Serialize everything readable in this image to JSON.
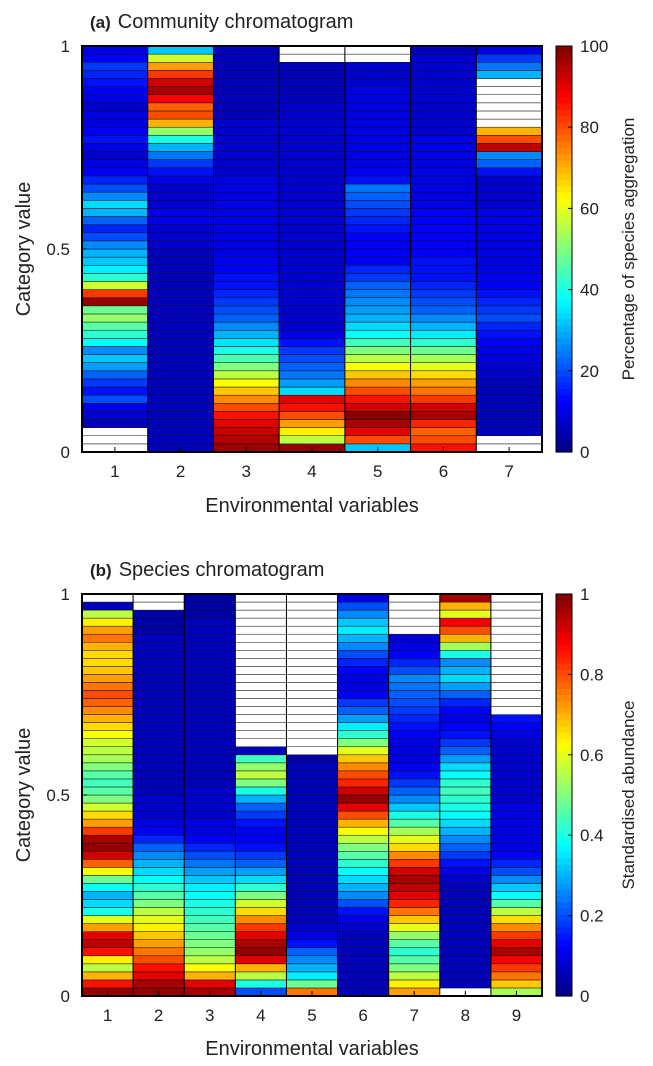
{
  "chart_data": [
    {
      "type": "heatmap",
      "panel_label": "(a)",
      "title": "Community chromatogram",
      "xlabel": "Environmental variables",
      "ylabel": "Category value",
      "colorbar_label": "Percentage of species aggregation",
      "x": [
        1,
        2,
        3,
        4,
        5,
        6,
        7
      ],
      "ylim": [
        0,
        1
      ],
      "clim": [
        0,
        100
      ],
      "yticks": [
        "0",
        "0.5",
        "1"
      ],
      "cticks": [
        "0",
        "20",
        "40",
        "60",
        "80",
        "100"
      ],
      "colormap": "jet",
      "missing_color": "#ffffff",
      "rows_bottom_to_top": 50,
      "columns": [
        [
          null,
          null,
          null,
          6,
          8,
          10,
          20,
          14,
          18,
          22,
          28,
          32,
          26,
          38,
          42,
          46,
          52,
          48,
          98,
          82,
          58,
          42,
          36,
          32,
          30,
          26,
          20,
          16,
          22,
          30,
          34,
          26,
          20,
          16,
          12,
          10,
          8,
          10,
          14,
          12,
          10,
          10,
          8,
          10,
          12,
          14,
          16,
          18,
          12,
          10
        ],
        [
          6,
          6,
          6,
          6,
          6,
          6,
          6,
          6,
          6,
          6,
          6,
          6,
          6,
          6,
          6,
          6,
          6,
          6,
          6,
          6,
          6,
          6,
          6,
          6,
          6,
          8,
          8,
          8,
          10,
          10,
          8,
          8,
          8,
          10,
          14,
          18,
          24,
          30,
          40,
          52,
          70,
          80,
          78,
          88,
          96,
          92,
          82,
          72,
          58,
          32
        ],
        [
          97,
          95,
          93,
          90,
          86,
          80,
          74,
          68,
          62,
          56,
          50,
          45,
          40,
          35,
          30,
          26,
          22,
          20,
          18,
          16,
          14,
          14,
          12,
          12,
          10,
          10,
          10,
          10,
          10,
          10,
          10,
          10,
          10,
          10,
          8,
          8,
          8,
          8,
          8,
          8,
          8,
          6,
          6,
          6,
          6,
          6,
          6,
          6,
          6,
          6
        ],
        [
          98,
          56,
          64,
          72,
          80,
          86,
          90,
          34,
          28,
          24,
          22,
          20,
          18,
          14,
          10,
          8,
          8,
          8,
          8,
          8,
          8,
          8,
          8,
          8,
          8,
          8,
          8,
          8,
          8,
          8,
          8,
          8,
          8,
          8,
          8,
          8,
          8,
          8,
          8,
          8,
          8,
          8,
          8,
          6,
          6,
          6,
          6,
          6,
          null,
          null
        ],
        [
          32,
          80,
          90,
          96,
          99,
          92,
          86,
          80,
          74,
          68,
          62,
          56,
          50,
          44,
          38,
          34,
          30,
          28,
          26,
          24,
          22,
          18,
          16,
          12,
          12,
          12,
          12,
          14,
          16,
          18,
          20,
          22,
          24,
          14,
          12,
          10,
          10,
          10,
          10,
          10,
          10,
          10,
          10,
          10,
          10,
          8,
          8,
          8,
          null,
          null
        ],
        [
          86,
          80,
          78,
          84,
          96,
          92,
          82,
          76,
          72,
          66,
          60,
          54,
          48,
          42,
          36,
          30,
          26,
          22,
          20,
          18,
          16,
          14,
          14,
          14,
          12,
          12,
          12,
          12,
          12,
          12,
          10,
          10,
          10,
          10,
          10,
          10,
          10,
          10,
          10,
          8,
          8,
          8,
          8,
          8,
          8,
          8,
          8,
          8,
          8,
          6
        ],
        [
          null,
          null,
          6,
          6,
          6,
          6,
          6,
          6,
          6,
          8,
          8,
          10,
          10,
          12,
          14,
          16,
          20,
          18,
          16,
          14,
          12,
          12,
          10,
          10,
          10,
          10,
          10,
          10,
          10,
          10,
          8,
          8,
          8,
          8,
          14,
          22,
          26,
          94,
          80,
          70,
          null,
          null,
          null,
          null,
          null,
          null,
          30,
          24,
          18,
          10
        ]
      ]
    },
    {
      "type": "heatmap",
      "panel_label": "(b)",
      "title": "Species chromatogram",
      "xlabel": "Environmental variables",
      "ylabel": "Category value",
      "colorbar_label": "Standardised abundance",
      "x": [
        1,
        2,
        3,
        4,
        5,
        6,
        7,
        8,
        9
      ],
      "ylim": [
        0,
        1
      ],
      "clim": [
        0,
        1
      ],
      "yticks": [
        "0",
        "0.5",
        "1"
      ],
      "cticks": [
        "0",
        "0.2",
        "0.4",
        "0.6",
        "0.8",
        "1"
      ],
      "colormap": "jet",
      "missing_color": "#ffffff",
      "rows_bottom_to_top": 50,
      "columns": [
        [
          0.98,
          0.86,
          0.7,
          0.56,
          0.64,
          0.86,
          0.94,
          0.9,
          0.72,
          0.6,
          0.4,
          0.34,
          0.3,
          0.38,
          0.48,
          0.62,
          0.78,
          0.92,
          0.98,
          0.96,
          0.82,
          0.72,
          0.66,
          0.58,
          0.5,
          0.46,
          0.44,
          0.46,
          0.5,
          0.54,
          0.56,
          0.58,
          0.62,
          0.66,
          0.7,
          0.74,
          0.78,
          0.8,
          0.76,
          0.72,
          0.68,
          0.66,
          0.66,
          0.7,
          0.76,
          0.72,
          0.64,
          0.56,
          0.06,
          null
        ],
        [
          0.98,
          0.96,
          0.9,
          0.86,
          0.8,
          0.76,
          0.72,
          0.68,
          0.64,
          0.6,
          0.56,
          0.5,
          0.46,
          0.42,
          0.38,
          0.34,
          0.3,
          0.26,
          0.22,
          0.16,
          0.12,
          0.1,
          0.08,
          0.08,
          0.08,
          0.06,
          0.06,
          0.06,
          0.06,
          0.06,
          0.06,
          0.06,
          0.06,
          0.06,
          0.06,
          0.06,
          0.06,
          0.06,
          0.06,
          0.06,
          0.06,
          0.06,
          0.06,
          0.06,
          0.06,
          0.04,
          0.04,
          0.04,
          null,
          null
        ],
        [
          0.96,
          0.9,
          0.7,
          0.62,
          0.56,
          0.52,
          0.5,
          0.48,
          0.46,
          0.44,
          0.42,
          0.4,
          0.38,
          0.36,
          0.32,
          0.28,
          0.24,
          0.2,
          0.16,
          0.12,
          0.1,
          0.1,
          0.08,
          0.08,
          0.08,
          0.08,
          0.06,
          0.06,
          0.06,
          0.06,
          0.06,
          0.06,
          0.06,
          0.06,
          0.06,
          0.06,
          0.06,
          0.06,
          0.06,
          0.06,
          0.06,
          0.06,
          0.06,
          0.06,
          0.06,
          0.06,
          0.06,
          0.04,
          0.04,
          0.04
        ],
        [
          0.2,
          0.4,
          0.56,
          0.7,
          0.9,
          0.98,
          0.96,
          0.9,
          0.82,
          0.74,
          0.66,
          0.58,
          0.5,
          0.42,
          0.34,
          0.28,
          0.22,
          0.18,
          0.14,
          0.12,
          0.12,
          0.14,
          0.18,
          0.22,
          0.3,
          0.4,
          0.5,
          0.56,
          0.52,
          0.44,
          0.06,
          null,
          null,
          null,
          null,
          null,
          null,
          null,
          null,
          null,
          null,
          null,
          null,
          null,
          null,
          null,
          null,
          null,
          null,
          null
        ],
        [
          0.76,
          0.48,
          0.36,
          0.3,
          0.26,
          0.22,
          0.14,
          0.1,
          0.08,
          0.06,
          0.06,
          0.06,
          0.06,
          0.06,
          0.06,
          0.06,
          0.06,
          0.06,
          0.06,
          0.06,
          0.06,
          0.06,
          0.06,
          0.06,
          0.06,
          0.06,
          0.06,
          0.06,
          0.06,
          0.04,
          null,
          null,
          null,
          null,
          null,
          null,
          null,
          null,
          null,
          null,
          null,
          null,
          null,
          null,
          null,
          null,
          null,
          null,
          null,
          null
        ],
        [
          0.06,
          0.06,
          0.06,
          0.06,
          0.06,
          0.06,
          0.06,
          0.06,
          0.08,
          0.1,
          0.14,
          0.2,
          0.26,
          0.3,
          0.34,
          0.38,
          0.42,
          0.46,
          0.5,
          0.56,
          0.62,
          0.7,
          0.8,
          0.9,
          0.98,
          0.92,
          0.84,
          0.8,
          0.74,
          0.68,
          0.6,
          0.5,
          0.42,
          0.36,
          0.28,
          0.22,
          0.18,
          0.12,
          0.1,
          0.1,
          0.12,
          0.16,
          0.2,
          0.26,
          0.3,
          0.36,
          0.32,
          0.26,
          0.2,
          0.1
        ],
        [
          0.72,
          0.64,
          0.56,
          0.5,
          0.46,
          0.42,
          0.46,
          0.52,
          0.6,
          0.68,
          0.76,
          0.84,
          0.9,
          0.94,
          0.96,
          0.92,
          0.82,
          0.74,
          0.66,
          0.6,
          0.54,
          0.46,
          0.4,
          0.32,
          0.26,
          0.22,
          0.18,
          0.14,
          0.12,
          0.1,
          0.1,
          0.1,
          0.12,
          0.14,
          0.16,
          0.18,
          0.2,
          0.22,
          0.24,
          0.26,
          0.2,
          0.16,
          0.12,
          0.1,
          0.08,
          null,
          null,
          null,
          null,
          null
        ],
        [
          null,
          0.06,
          0.06,
          0.06,
          0.06,
          0.06,
          0.06,
          0.06,
          0.06,
          0.06,
          0.06,
          0.06,
          0.06,
          0.06,
          0.08,
          0.1,
          0.14,
          0.18,
          0.22,
          0.26,
          0.3,
          0.34,
          0.38,
          0.4,
          0.42,
          0.44,
          0.42,
          0.38,
          0.34,
          0.28,
          0.22,
          0.18,
          0.14,
          0.12,
          0.1,
          0.12,
          0.16,
          0.22,
          0.28,
          0.34,
          0.3,
          0.26,
          0.4,
          0.54,
          0.7,
          0.8,
          0.88,
          0.6,
          0.7,
          0.96
        ],
        [
          0.54,
          0.68,
          0.76,
          0.82,
          0.88,
          0.96,
          0.9,
          0.82,
          0.74,
          0.66,
          0.56,
          0.46,
          0.38,
          0.32,
          0.26,
          0.2,
          0.16,
          0.12,
          0.1,
          0.1,
          0.1,
          0.1,
          0.1,
          0.1,
          0.08,
          0.08,
          0.08,
          0.08,
          0.08,
          0.08,
          0.08,
          0.08,
          0.1,
          0.12,
          0.14,
          null,
          null,
          null,
          null,
          null,
          null,
          null,
          null,
          null,
          null,
          null,
          null,
          null,
          null,
          null
        ]
      ]
    }
  ]
}
